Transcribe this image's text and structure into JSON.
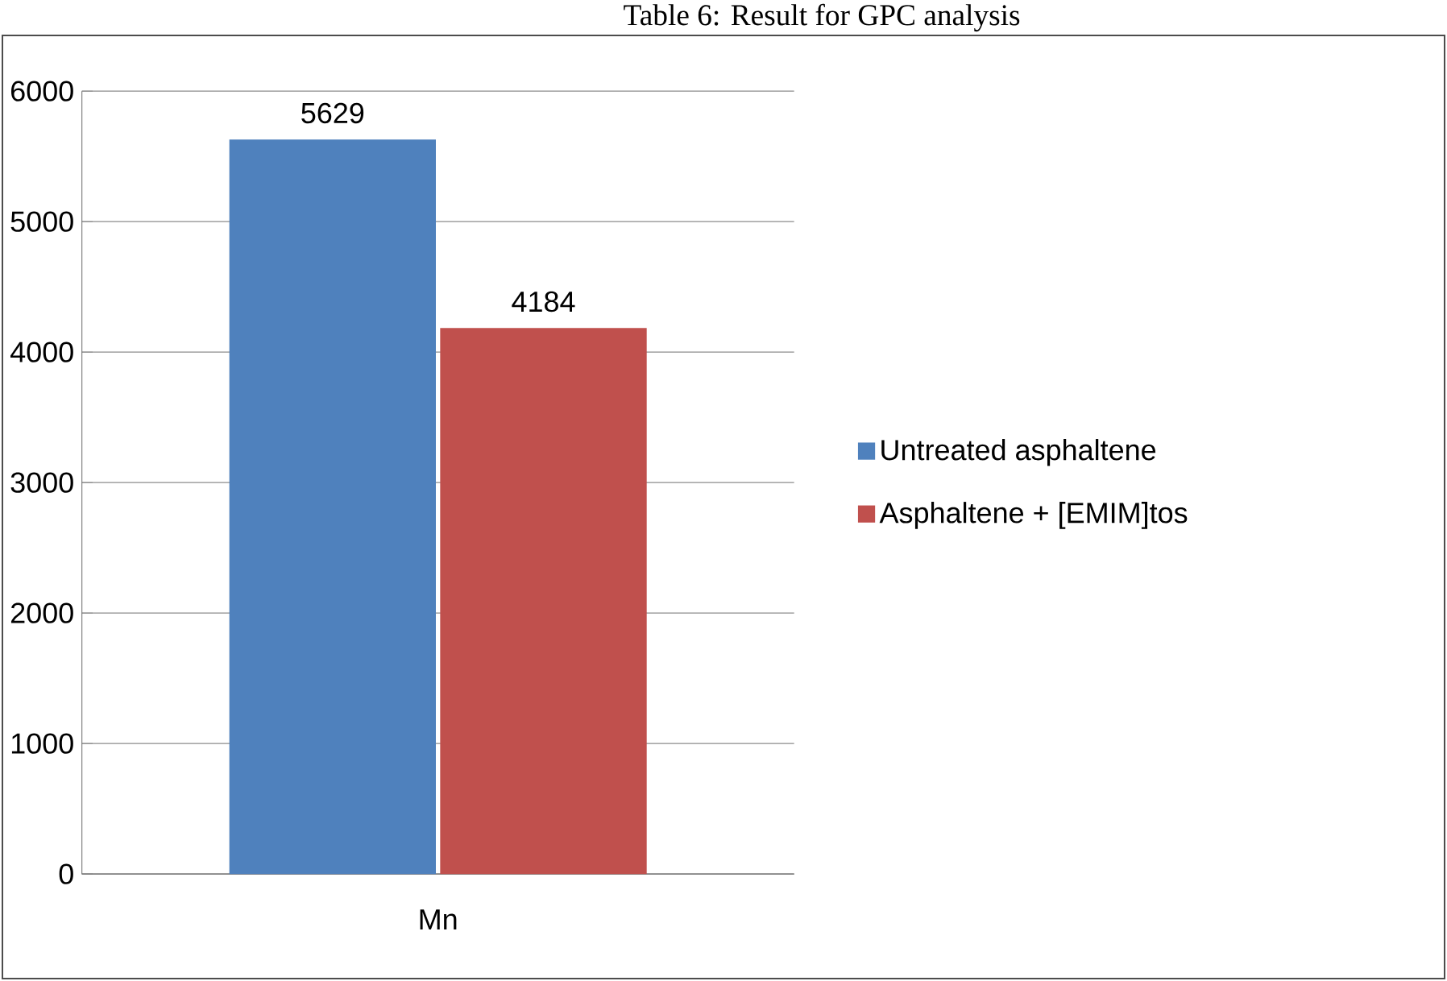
{
  "chart_data": {
    "type": "bar",
    "title": "Table 6: Result for GPC analysis",
    "categories": [
      "Mn"
    ],
    "series": [
      {
        "name": "Untreated asphaltene",
        "color": "#4f81bd",
        "values": [
          5629
        ]
      },
      {
        "name": "Asphaltene + [EMIM]tos",
        "color": "#c0504d",
        "values": [
          4184
        ]
      }
    ],
    "ylim": [
      0,
      6000
    ],
    "yticks": [
      0,
      1000,
      2000,
      3000,
      4000,
      5000,
      6000
    ],
    "grid": "y",
    "legend": "right",
    "data_labels": true
  }
}
